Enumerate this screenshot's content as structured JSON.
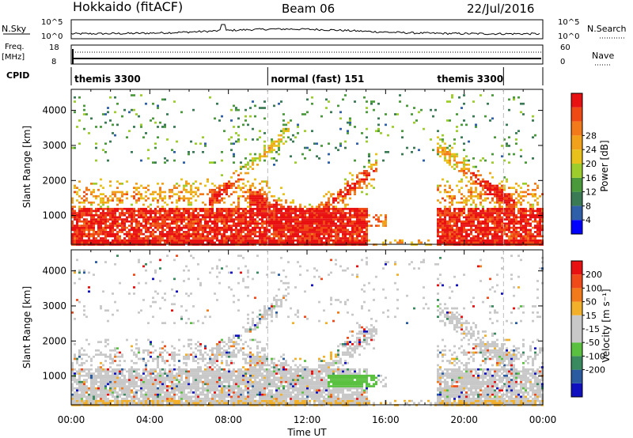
{
  "header": {
    "station": "Hokkaido (fitACF)",
    "beam": "Beam 06",
    "date": "22/Jul/2016"
  },
  "top_panels": {
    "nsky_label": "N.Sky",
    "nsky_ticks": [
      "10^5",
      "10^0"
    ],
    "nsearch_label": "N.Search",
    "freq_label": "Freq.",
    "freq_unit": "[MHz]",
    "freq_ticks": [
      "18",
      "8"
    ],
    "nave_label": "Nave",
    "nave_ticks": [
      "60",
      "0"
    ],
    "cpid_label": "CPID"
  },
  "cpid_segments": [
    {
      "label": "themis 3300",
      "start_h": 0,
      "end_h": 10
    },
    {
      "label": "normal (fast) 151",
      "start_h": 10,
      "end_h": 22
    },
    {
      "label": "themis 3300",
      "start_h": 22,
      "end_h": 24
    }
  ],
  "chart_data": [
    {
      "type": "heatmap",
      "title": "",
      "xlabel": "",
      "ylabel": "Slant Range [km]",
      "xlim": [
        0,
        24
      ],
      "ylim": [
        180,
        4600
      ],
      "yticks": [
        "1000",
        "2000",
        "3000",
        "4000"
      ],
      "colorbar": {
        "label": "Power [dB]",
        "ticks": [
          "4",
          "8",
          "12",
          "16",
          "20",
          "24",
          "28"
        ],
        "colors": [
          "#0000ff",
          "#2e5fa8",
          "#3a7a55",
          "#4a9a3c",
          "#9ccd2c",
          "#e8c21a",
          "#f2a21a",
          "#f27a1a",
          "#f04a14",
          "#e81010"
        ]
      }
    },
    {
      "type": "heatmap",
      "title": "",
      "xlabel": "Time UT",
      "ylabel": "Slant Range [km]",
      "xlim": [
        0,
        24
      ],
      "ylim": [
        180,
        4600
      ],
      "yticks": [
        "1000",
        "2000",
        "3000",
        "4000"
      ],
      "xticks": [
        "00:00",
        "04:00",
        "08:00",
        "12:00",
        "16:00",
        "20:00",
        "00:00"
      ],
      "colorbar": {
        "label": "Velocity [m s⁻¹]",
        "ticks": [
          "200",
          "100",
          "50",
          "15",
          "-15",
          "-50",
          "-100",
          "-200"
        ],
        "colors": [
          "#1010c0",
          "#2a5aa0",
          "#3a8a60",
          "#5ac040",
          "#c8c8c8",
          "#c8c8c8",
          "#f2b02a",
          "#f27a1a",
          "#f04a1a",
          "#e81010"
        ]
      }
    }
  ]
}
